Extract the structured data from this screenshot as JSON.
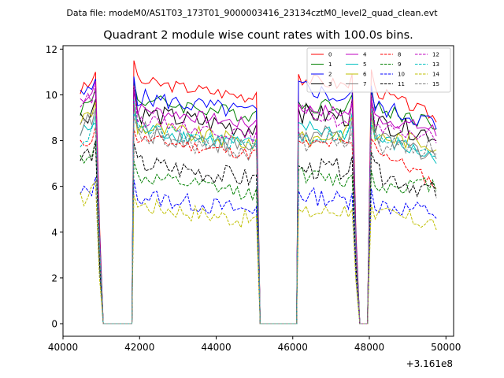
{
  "chart_data": {
    "type": "line",
    "suptitle": "Data file: modeM0/AS1T03_173T01_9000003416_23134cztM0_level2_quad_clean.evt",
    "title": "Quadrant 2 module wise count rates with 100.0s bins.",
    "xlabel": "",
    "ylabel": "",
    "x_offset_label": "+3.161e8",
    "xlim": [
      40000,
      50200
    ],
    "ylim": [
      -0.55,
      12.15
    ],
    "xticks": [
      40000,
      42000,
      44000,
      46000,
      48000,
      50000
    ],
    "xtick_labels": [
      "40000",
      "42000",
      "44000",
      "46000",
      "48000",
      "50000"
    ],
    "yticks": [
      0,
      2,
      4,
      6,
      8,
      10,
      12
    ],
    "ytick_labels": [
      "0",
      "2",
      "4",
      "6",
      "8",
      "10",
      "12"
    ],
    "legend_position": "top-right",
    "legend_columns": 4,
    "segments": [
      [
        40450,
        40850
      ],
      [
        41850,
        45050
      ],
      [
        46150,
        47550
      ],
      [
        48050,
        49750
      ]
    ],
    "gap_level": 0,
    "series": [
      {
        "name": "0",
        "color": "#ff0000",
        "style": "solid",
        "base": 10.0,
        "start": 10.2,
        "peak": 11.5,
        "seg3_start": 10.9,
        "end": 8.8
      },
      {
        "name": "1",
        "color": "#008000",
        "style": "solid",
        "base": 9.2,
        "start": 9.4,
        "peak": 10.6,
        "seg3_start": 9.7,
        "end": 8.5
      },
      {
        "name": "2",
        "color": "#0000ff",
        "style": "solid",
        "base": 9.3,
        "start": 9.9,
        "peak": 10.8,
        "seg3_start": 10.6,
        "end": 8.5
      },
      {
        "name": "3",
        "color": "#000000",
        "style": "solid",
        "base": 8.6,
        "start": 9.0,
        "peak": 10.4,
        "seg3_start": 9.4,
        "end": 8.0
      },
      {
        "name": "4",
        "color": "#bf00bf",
        "style": "solid",
        "base": 8.8,
        "start": 9.8,
        "peak": 10.2,
        "seg3_start": 9.6,
        "end": 8.2
      },
      {
        "name": "5",
        "color": "#00bfbf",
        "style": "solid",
        "base": 7.9,
        "start": 8.3,
        "peak": 9.8,
        "seg3_start": 8.8,
        "end": 7.0
      },
      {
        "name": "6",
        "color": "#bfbf00",
        "style": "solid",
        "base": 8.0,
        "start": 8.9,
        "peak": 9.6,
        "seg3_start": 8.2,
        "end": 7.6
      },
      {
        "name": "7",
        "color": "#808080",
        "style": "solid",
        "base": 7.8,
        "start": 8.6,
        "peak": 9.5,
        "seg3_start": 8.4,
        "end": 7.2
      },
      {
        "name": "8",
        "color": "#ff0000",
        "style": "dashed",
        "base": 7.5,
        "start": 7.8,
        "peak": 8.5,
        "seg3_start": 8.0,
        "end": 5.9
      },
      {
        "name": "9",
        "color": "#008000",
        "style": "dashed",
        "base": 5.8,
        "start": 7.2,
        "peak": 7.1,
        "seg3_start": 6.7,
        "end": 5.8
      },
      {
        "name": "10",
        "color": "#0000ff",
        "style": "dashed",
        "base": 5.0,
        "start": 5.6,
        "peak": 6.3,
        "seg3_start": 5.8,
        "end": 4.6
      },
      {
        "name": "11",
        "color": "#000000",
        "style": "dashed",
        "base": 6.4,
        "start": 7.2,
        "peak": 7.9,
        "seg3_start": 6.9,
        "end": 5.5
      },
      {
        "name": "12",
        "color": "#bf00bf",
        "style": "dashed",
        "base": 8.3,
        "start": 9.6,
        "peak": 10.4,
        "seg3_start": 9.5,
        "end": 7.9
      },
      {
        "name": "13",
        "color": "#00bfbf",
        "style": "dashed",
        "base": 7.9,
        "start": 8.0,
        "peak": 9.2,
        "seg3_start": 8.3,
        "end": 7.3
      },
      {
        "name": "14",
        "color": "#bfbf00",
        "style": "dashed",
        "base": 4.6,
        "start": 5.4,
        "peak": 5.6,
        "seg3_start": 5.0,
        "end": 4.1
      },
      {
        "name": "15",
        "color": "#808080",
        "style": "dashed",
        "base": 7.6,
        "start": 8.5,
        "peak": 9.0,
        "seg3_start": 8.1,
        "end": 7.4
      }
    ]
  }
}
